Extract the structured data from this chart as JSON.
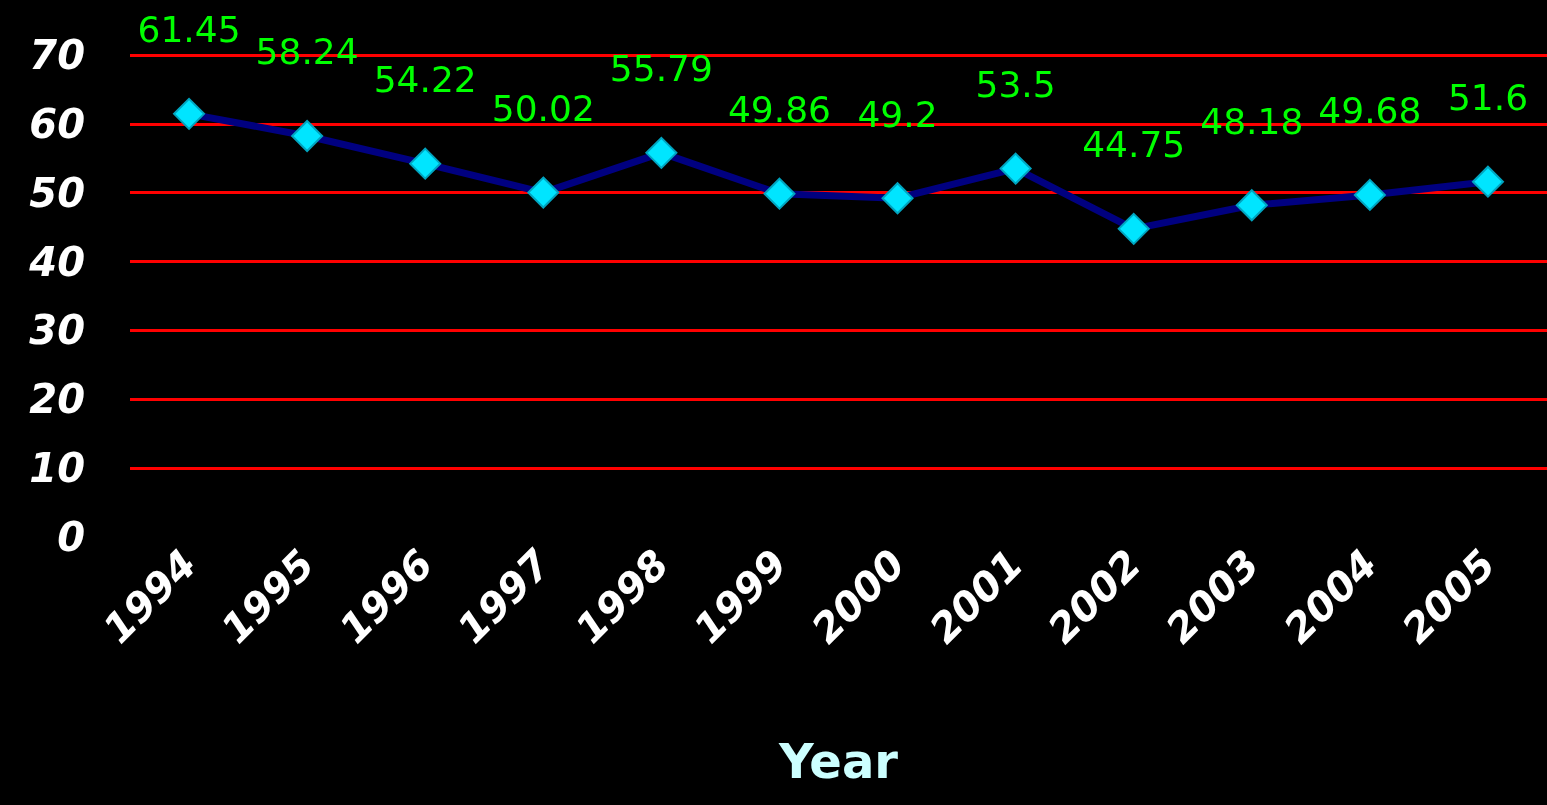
{
  "chart_data": {
    "type": "line",
    "xlabel": "Year",
    "categories": [
      "1994",
      "1995",
      "1996",
      "1997",
      "1998",
      "1999",
      "2000",
      "2001",
      "2002",
      "2003",
      "2004",
      "2005"
    ],
    "series": [
      {
        "color": "#000080",
        "values": [
          61.45,
          58.24,
          54.22,
          50.02,
          55.79,
          49.86,
          49.2,
          53.5,
          44.75,
          48.18,
          49.68,
          51.6
        ]
      }
    ],
    "ylim": [
      0,
      70
    ],
    "yticks": [
      0,
      10,
      20,
      30,
      40,
      50,
      60,
      70
    ],
    "grid": "y",
    "marker": "diamond",
    "data_labels": true
  }
}
